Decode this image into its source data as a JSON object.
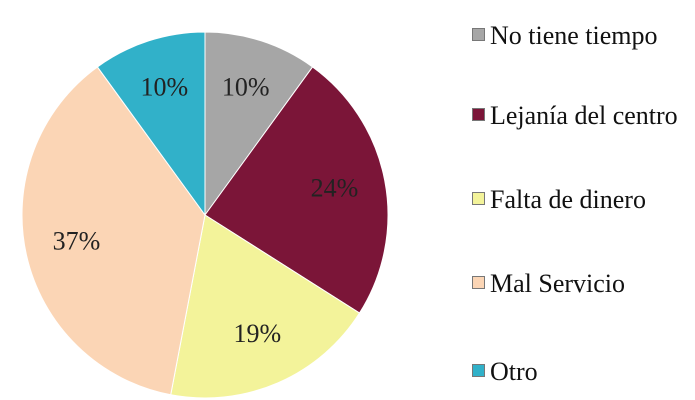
{
  "chart_data": {
    "type": "pie",
    "categories": [
      "No tiene tiempo",
      "Lejanía del centro",
      "Falta de dinero",
      "Mal Servicio",
      "Otro"
    ],
    "values": [
      10,
      24,
      19,
      37,
      10
    ],
    "value_labels": [
      "10%",
      "24%",
      "19%",
      "37%",
      "10%"
    ],
    "colors": [
      "#a6a6a6",
      "#7b1538",
      "#f3f39a",
      "#fbd5b5",
      "#31b1c9"
    ],
    "legend": "right"
  }
}
